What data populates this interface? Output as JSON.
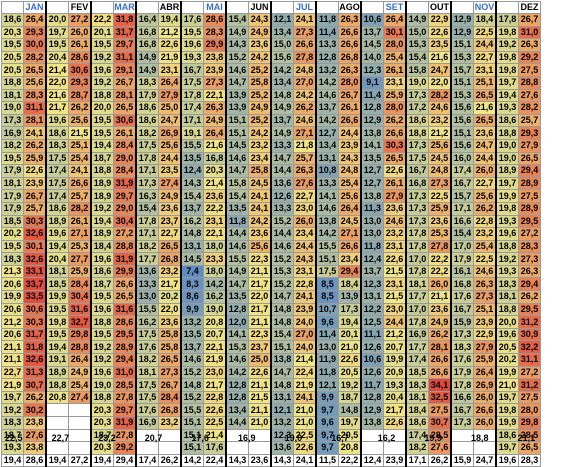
{
  "months": [
    "JAN",
    "FEV",
    "MAR",
    "ABR",
    "MAI",
    "JUN",
    "JUL",
    "AGO",
    "SET",
    "OUT",
    "NOV",
    "DEZ"
  ],
  "blue_months": [
    "JAN",
    "MAR",
    "MAI",
    "JUL",
    "SET",
    "NOV"
  ],
  "rows": [
    [
      "18,6",
      "26,4",
      "20,0",
      "27,2",
      "22,2",
      "31,8",
      "16,4",
      "19,4",
      "17,6",
      "28,6",
      "15,4",
      "24,3",
      "12,1",
      "24,1",
      "11,8",
      "26,3",
      "10,6",
      "26,4",
      "14,9",
      "22,9",
      "12,9",
      "18,4",
      "17,8",
      "26,7"
    ],
    [
      "20,3",
      "29,3",
      "19,7",
      "26,0",
      "20,1",
      "31,7",
      "16,8",
      "21,2",
      "19,5",
      "28,3",
      "14,9",
      "24,9",
      "13,4",
      "27,3",
      "11,4",
      "26,6",
      "13,7",
      "30,1",
      "15,0",
      "22,6",
      "12,9",
      "22,5",
      "19,8",
      "31,0"
    ],
    [
      "19,5",
      "30,0",
      "19,5",
      "26,1",
      "19,5",
      "29,7",
      "16,8",
      "22,6",
      "19,6",
      "29,9",
      "14,3",
      "23,6",
      "15,0",
      "26,6",
      "13,3",
      "26,6",
      "14,5",
      "28,0",
      "15,3",
      "23,5",
      "15,1",
      "24,4",
      "19,2",
      "26,3"
    ],
    [
      "20,5",
      "28,2",
      "20,4",
      "28,6",
      "19,2",
      "31,1",
      "14,9",
      "21,9",
      "19,3",
      "23,8",
      "15,2",
      "24,2",
      "15,6",
      "27,8",
      "12,8",
      "26,8",
      "14,0",
      "25,4",
      "15,4",
      "21,6",
      "15,3",
      "22,7",
      "19,8",
      "29,2"
    ],
    [
      "20,5",
      "26,5",
      "21,4",
      "30,6",
      "19,6",
      "29,1",
      "14,9",
      "23,1",
      "16,7",
      "23,9",
      "14,6",
      "25,2",
      "14,2",
      "24,8",
      "13,2",
      "26,3",
      "12,3",
      "26,1",
      "15,8",
      "24,7",
      "15,7",
      "23,1",
      "19,8",
      "27,5"
    ],
    [
      "18,8",
      "25,6",
      "22,0",
      "29,3",
      "19,2",
      "26,7",
      "18,3",
      "26,4",
      "17,5",
      "27,3",
      "14,7",
      "25,8",
      "13,4",
      "27,0",
      "14,2",
      "28,0",
      "9,1",
      "23,1",
      "19,0",
      "22,0",
      "15,1",
      "25,1",
      "19,7",
      "28,8"
    ],
    [
      "18,1",
      "28,3",
      "21,6",
      "28,7",
      "18,8",
      "28,1",
      "17,9",
      "27,9",
      "17,8",
      "22,1",
      "13,9",
      "25,2",
      "14,8",
      "24,2",
      "14,6",
      "26,7",
      "11,4",
      "25,9",
      "17,3",
      "28,2",
      "15,3",
      "26,5",
      "19,4",
      "27,6"
    ],
    [
      "19,0",
      "31,1",
      "21,7",
      "26,2",
      "20,0",
      "26,5",
      "18,6",
      "25,0",
      "17,4",
      "26,3",
      "13,9",
      "24,9",
      "14,9",
      "26,2",
      "13,7",
      "26,1",
      "12,8",
      "28,0",
      "17,2",
      "24,6",
      "15,6",
      "21,6",
      "19,3",
      "28,2"
    ],
    [
      "17,3",
      "28,1",
      "19,6",
      "25,6",
      "19,5",
      "30,6",
      "18,6",
      "24,7",
      "17,1",
      "24,9",
      "15,1",
      "25,2",
      "13,7",
      "24,6",
      "14,2",
      "26,6",
      "12,9",
      "26,2",
      "18,6",
      "23,2",
      "15,6",
      "26,5",
      "18,6",
      "25,7"
    ],
    [
      "16,9",
      "24,1",
      "18,6",
      "21,5",
      "19,5",
      "26,1",
      "18,2",
      "26,9",
      "19,1",
      "26,4",
      "15,1",
      "24,2",
      "14,9",
      "27,1",
      "12,7",
      "24,4",
      "13,8",
      "26,6",
      "18,8",
      "21,2",
      "15,1",
      "23,6",
      "18,8",
      "29,3"
    ],
    [
      "18,2",
      "26,2",
      "18,3",
      "25,1",
      "19,4",
      "28,4",
      "17,5",
      "25,6",
      "15,5",
      "21,6",
      "14,5",
      "23,2",
      "13,3",
      "21,8",
      "13,4",
      "23,9",
      "14,1",
      "30,3",
      "17,3",
      "25,6",
      "15,6",
      "24,7",
      "19,0",
      "27,9"
    ],
    [
      "19,5",
      "25,9",
      "17,5",
      "25,4",
      "18,7",
      "29,0",
      "17,8",
      "24,4",
      "13,5",
      "16,8",
      "14,6",
      "23,4",
      "14,7",
      "25,7",
      "13,1",
      "24,3",
      "13,5",
      "26,5",
      "17,5",
      "24,5",
      "16,0",
      "24,4",
      "19,0",
      "26,5"
    ],
    [
      "17,9",
      "22,6",
      "17,4",
      "24,1",
      "18,8",
      "28,4",
      "17,1",
      "23,5",
      "12,4",
      "20,3",
      "14,7",
      "25,8",
      "14,4",
      "26,3",
      "10,8",
      "24,8",
      "12,7",
      "22,6",
      "16,7",
      "24,8",
      "17,4",
      "26,0",
      "18,9",
      "29,4"
    ],
    [
      "18,1",
      "23,9",
      "17,5",
      "26,6",
      "18,9",
      "31,9",
      "17,3",
      "27,4",
      "14,3",
      "21,4",
      "15,8",
      "24,5",
      "13,6",
      "27,6",
      "13,3",
      "25,4",
      "12,7",
      "26,1",
      "16,8",
      "27,3",
      "16,7",
      "22,7",
      "19,7",
      "28,9"
    ],
    [
      "17,9",
      "26,7",
      "17,4",
      "25,7",
      "18,9",
      "29,7",
      "16,3",
      "24,9",
      "15,4",
      "23,6",
      "15,4",
      "24,1",
      "12,6",
      "22,7",
      "14,1",
      "25,6",
      "13,8",
      "27,9",
      "17,3",
      "22,5",
      "15,7",
      "25,6",
      "19,9",
      "27,5"
    ],
    [
      "17,9",
      "25,7",
      "18,6",
      "28,2",
      "19,2",
      "29,0",
      "15,4",
      "23,6",
      "13,7",
      "22,2",
      "13,5",
      "24,1",
      "13,3",
      "23,0",
      "14,6",
      "26,4",
      "11,3",
      "23,6",
      "17,3",
      "25,9",
      "17,1",
      "26,2",
      "19,8",
      "28,9"
    ],
    [
      "18,5",
      "30,3",
      "18,9",
      "26,1",
      "19,4",
      "30,4",
      "17,8",
      "23,7",
      "16,2",
      "23,1",
      "11,8",
      "24,2",
      "15,2",
      "26,0",
      "13,8",
      "24,5",
      "13,0",
      "24,6",
      "17,3",
      "23,6",
      "16,6",
      "22,8",
      "19,3",
      "29,5"
    ],
    [
      "20,2",
      "32,6",
      "19,6",
      "27,1",
      "18,9",
      "27,2",
      "17,1",
      "22,7",
      "14,8",
      "22,1",
      "14,4",
      "23,6",
      "14,4",
      "23,4",
      "14,2",
      "27,1",
      "13,0",
      "23,2",
      "17,8",
      "25,3",
      "15,4",
      "23,2",
      "19,6",
      "27,2"
    ],
    [
      "19,5",
      "30,1",
      "19,4",
      "25,3",
      "18,4",
      "28,8",
      "18,2",
      "26,5",
      "13,1",
      "18,0",
      "14,6",
      "25,6",
      "14,6",
      "24,4",
      "15,5",
      "26,6",
      "11,8",
      "23,1",
      "17,8",
      "27,8",
      "17,0",
      "25,4",
      "18,8",
      "28,3"
    ],
    [
      "18,3",
      "32,6",
      "20,4",
      "27,7",
      "19,6",
      "31,9",
      "17,7",
      "26,8",
      "14,5",
      "23,3",
      "15,5",
      "22,3",
      "15,2",
      "24,3",
      "15,1",
      "23,4",
      "12,4",
      "22,6",
      "17,0",
      "22,2",
      "17,9",
      "22,5",
      "19,2",
      "27,3"
    ],
    [
      "21,3",
      "33,1",
      "18,1",
      "25,9",
      "18,6",
      "29,9",
      "13,6",
      "23,2",
      "7,4",
      "18,0",
      "14,9",
      "21,1",
      "15,3",
      "23,1",
      "17,5",
      "29,4",
      "13,7",
      "21,5",
      "17,8",
      "22,2",
      "16,1",
      "24,6",
      "19,3",
      "26,3"
    ],
    [
      "20,6",
      "33,7",
      "18,5",
      "28,4",
      "18,7",
      "26,6",
      "13,3",
      "21,7",
      "8,3",
      "14,2",
      "14,7",
      "21,7",
      "15,2",
      "22,8",
      "8,5",
      "18,4",
      "12,3",
      "23,1",
      "18,1",
      "26,0",
      "16,8",
      "26,3",
      "18,3",
      "29,4"
    ],
    [
      "19,9",
      "33,5",
      "19,9",
      "30,4",
      "19,5",
      "26,5",
      "13,0",
      "20,2",
      "8,6",
      "16,2",
      "13,5",
      "22,0",
      "14,7",
      "24,1",
      "8,5",
      "13,9",
      "13,1",
      "21,5",
      "17,7",
      "21,1",
      "17,6",
      "27,3",
      "18,1",
      "26,2"
    ],
    [
      "20,6",
      "30,6",
      "19,5",
      "31,6",
      "19,6",
      "31,6",
      "15,5",
      "22,0",
      "9,9",
      "19,0",
      "12,8",
      "21,7",
      "14,8",
      "23,9",
      "10,7",
      "17,3",
      "12,2",
      "23,0",
      "17,0",
      "23,6",
      "16,7",
      "25,1",
      "18,8",
      "29,5"
    ],
    [
      "21,2",
      "30,3",
      "19,8",
      "32,7",
      "18,8",
      "28,6",
      "16,2",
      "23,6",
      "13,2",
      "20,8",
      "12,0",
      "21,1",
      "14,8",
      "24,0",
      "9,6",
      "19,4",
      "12,5",
      "24,4",
      "17,8",
      "24,9",
      "15,9",
      "23,9",
      "20,0",
      "31,2"
    ],
    [
      "20,6",
      "31,7",
      "19,5",
      "29,8",
      "19,5",
      "29,5",
      "17,5",
      "25,8",
      "13,5",
      "20,7",
      "14,1",
      "22,3",
      "15,4",
      "27,0",
      "11,4",
      "20,1",
      "11,1",
      "21,2",
      "16,9",
      "26,2",
      "17,3",
      "22,9",
      "19,6",
      "30,9"
    ],
    [
      "21,1",
      "31,8",
      "19,4",
      "28,8",
      "19,2",
      "28,9",
      "17,6",
      "25,8",
      "13,7",
      "22,1",
      "15,3",
      "23,7",
      "15,1",
      "24,0",
      "13,0",
      "21,0",
      "12,6",
      "20,7",
      "17,7",
      "28,1",
      "18,3",
      "27,9",
      "20,5",
      "32,2"
    ],
    [
      "21,1",
      "32,6",
      "19,1",
      "26,4",
      "19,2",
      "29,4",
      "18,2",
      "26,5",
      "14,6",
      "21,9",
      "14,6",
      "25,0",
      "13,8",
      "21,4",
      "11,9",
      "22,6",
      "10,6",
      "19,9",
      "17,4",
      "26,6",
      "17,6",
      "25,9",
      "20,2",
      "31,1"
    ],
    [
      "22,7",
      "31,3",
      "18,9",
      "24,9",
      "19,6",
      "31,0",
      "18,1",
      "27,3",
      "15,2",
      "23,0",
      "14,2",
      "22,6",
      "14,7",
      "22,4",
      "11,8",
      "20,5",
      "12,6",
      "20,9",
      "18,5",
      "26,6",
      "17,9",
      "26,4",
      "19,9",
      "27,2"
    ],
    [
      "21,9",
      "30,7",
      "18,8",
      "25,4",
      "19,0",
      "28,5",
      "17,5",
      "26,7",
      "14,8",
      "21,7",
      "12,8",
      "21,1",
      "14,8",
      "21,9",
      "12,1",
      "19,2",
      "11,7",
      "19,3",
      "18,3",
      "34,1",
      "17,8",
      "26,9",
      "21,0",
      "31,2"
    ],
    [
      "19,7",
      "26,2",
      "20,8",
      "27,4",
      "18,8",
      "27,8",
      "17,5",
      "28,4",
      "15,2",
      "22,8",
      "12,8",
      "21,5",
      "13,1",
      "24,1",
      "9,9",
      "18,7",
      "12,8",
      "20,4",
      "18,1",
      "32,5",
      "16,6",
      "26,0",
      "19,7",
      "27,5"
    ],
    [
      "19,2",
      "30,2",
      "",
      "",
      "20,3",
      "29,7",
      "17,6",
      "26,8",
      "15,5",
      "22,6",
      "13,4",
      "21,1",
      "12,1",
      "21,0",
      "9,7",
      "14,8",
      "12,9",
      "21,7",
      "18,4",
      "27,5",
      "16,7",
      "26,6",
      "19,8",
      "28,0"
    ],
    [
      "18,3",
      "23,8",
      "",
      "",
      "20,3",
      "31,9",
      "16,9",
      "23,2",
      "15,1",
      "22,5",
      "14,4",
      "21,0",
      "13,2",
      "21,0",
      "9,6",
      "19,7",
      "13,8",
      "22,6",
      "18,6",
      "30,7",
      "17,3",
      "26,0",
      "19,9",
      "29,8"
    ],
    [
      "18,7",
      "27,6",
      "",
      "",
      "18,7",
      "27,8",
      "",
      "",
      "15,1",
      "21,4",
      "",
      "",
      "12,3",
      "22,5",
      "9,7",
      "20,5",
      "",
      "",
      "17,4",
      "28,5",
      "",
      "",
      "18,6",
      "28,5"
    ],
    [
      "19,3",
      "23,8",
      "",
      "",
      "20,3",
      "29,2",
      "",
      "",
      "15,1",
      "17,6",
      "",
      "",
      "13,6",
      "22,6",
      "9,7",
      "20,8",
      "",
      "",
      "18,2",
      "27,6",
      "",
      "",
      "19,7",
      "26,5"
    ]
  ],
  "avg_row": [
    "19,4",
    "28,6",
    "19,4",
    "27,2",
    "19,4",
    "29,4",
    "17,4",
    "26,2",
    "14,2",
    "22,4",
    "14,3",
    "23,6",
    "14,3",
    "24,1",
    "11,5",
    "22,2",
    "12,4",
    "23,9",
    "17,1",
    "26,2",
    "15,9",
    "24,7",
    "19,6",
    "28,3"
  ],
  "bottom_values": [
    "22,5",
    "22,7",
    "23,2",
    "20,7",
    "17,6",
    "16,9",
    "19,0",
    "16,7",
    "16,2",
    "19,9",
    "18,8",
    "21,1"
  ],
  "colors": {
    "low": "#5a8ac6",
    "mid": "#f2e783",
    "high": "#e3473b",
    "lowest_val": 7,
    "mid_val": 21.5,
    "highest_val": 34
  }
}
